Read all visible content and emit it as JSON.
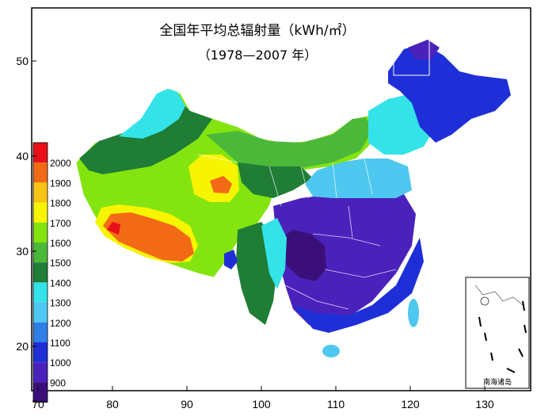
{
  "title": {
    "line1": "全国年平均总辐射量（kWh/㎡）",
    "line2": "（1978—2007 年）"
  },
  "axes": {
    "x_ticks": [
      "70",
      "80",
      "90",
      "100",
      "110",
      "120",
      "130"
    ],
    "y_ticks": [
      "20",
      "30",
      "40",
      "50"
    ]
  },
  "legend": {
    "items": [
      {
        "label": "",
        "color": "#e8101a"
      },
      {
        "label": "2000",
        "color": "#f26a16"
      },
      {
        "label": "1900",
        "color": "#f7c315"
      },
      {
        "label": "1800",
        "color": "#f7f400"
      },
      {
        "label": "1700",
        "color": "#84e410"
      },
      {
        "label": "1600",
        "color": "#4cb83a"
      },
      {
        "label": "1500",
        "color": "#1f7d35"
      },
      {
        "label": "1400",
        "color": "#33e3e8"
      },
      {
        "label": "1300",
        "color": "#4ec8f0"
      },
      {
        "label": "1200",
        "color": "#2f7fe6"
      },
      {
        "label": "1100",
        "color": "#1f2fd8"
      },
      {
        "label": "1000",
        "color": "#4a22bb"
      },
      {
        "label": "900",
        "color": "#3a0f7a"
      }
    ]
  },
  "inset": {
    "label": "南海诸岛"
  }
}
